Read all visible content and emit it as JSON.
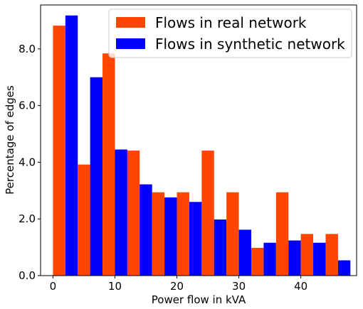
{
  "chart_data": {
    "type": "bar",
    "title": "",
    "xlabel": "Power flow in kVA",
    "ylabel": "Percentage of edges",
    "xlim": [
      -2,
      49
    ],
    "ylim": [
      0,
      9.55
    ],
    "xticks": [
      0,
      10,
      20,
      30,
      40
    ],
    "yticks": [
      0.0,
      2.0,
      4.0,
      6.0,
      8.0
    ],
    "ytick_labels": [
      "0.0",
      "2.0",
      "4.0",
      "6.0",
      "8.0"
    ],
    "xtick_labels": [
      "0",
      "10",
      "20",
      "30",
      "40"
    ],
    "grid": false,
    "legend": "top-right",
    "bin_width": 4,
    "bin_centers": [
      2,
      6,
      10,
      14,
      18,
      22,
      26,
      30,
      34,
      38,
      42,
      46
    ],
    "series": [
      {
        "name": "Flows in real network",
        "color": "#ff4500",
        "values": [
          8.82,
          3.92,
          7.84,
          4.41,
          2.94,
          2.94,
          4.41,
          2.94,
          0.98,
          2.94,
          1.47,
          1.47
        ]
      },
      {
        "name": "Flows in synthetic network",
        "color": "#0000ff",
        "values": [
          9.18,
          7.0,
          4.45,
          3.22,
          2.76,
          2.6,
          1.98,
          1.62,
          1.16,
          1.24,
          1.16,
          0.54
        ]
      }
    ]
  }
}
